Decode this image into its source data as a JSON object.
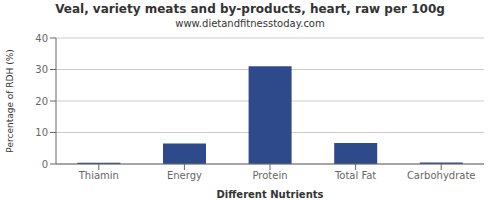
{
  "chart_data": {
    "type": "bar",
    "title": "Veal, variety meats and by-products, heart, raw per 100g",
    "subtitle": "www.dietandfitnesstoday.com",
    "xlabel": "Different Nutrients",
    "ylabel": "Percentage of RDH (%)",
    "categories": [
      "Thiamin",
      "Energy",
      "Protein",
      "Total Fat",
      "Carbohydrate"
    ],
    "values": [
      0.4,
      6.5,
      31.0,
      6.7,
      0.5
    ],
    "color": "#2e4a8a",
    "ylim": [
      0,
      40
    ],
    "yticks": [
      0,
      10,
      20,
      30,
      40
    ],
    "grid": true
  }
}
